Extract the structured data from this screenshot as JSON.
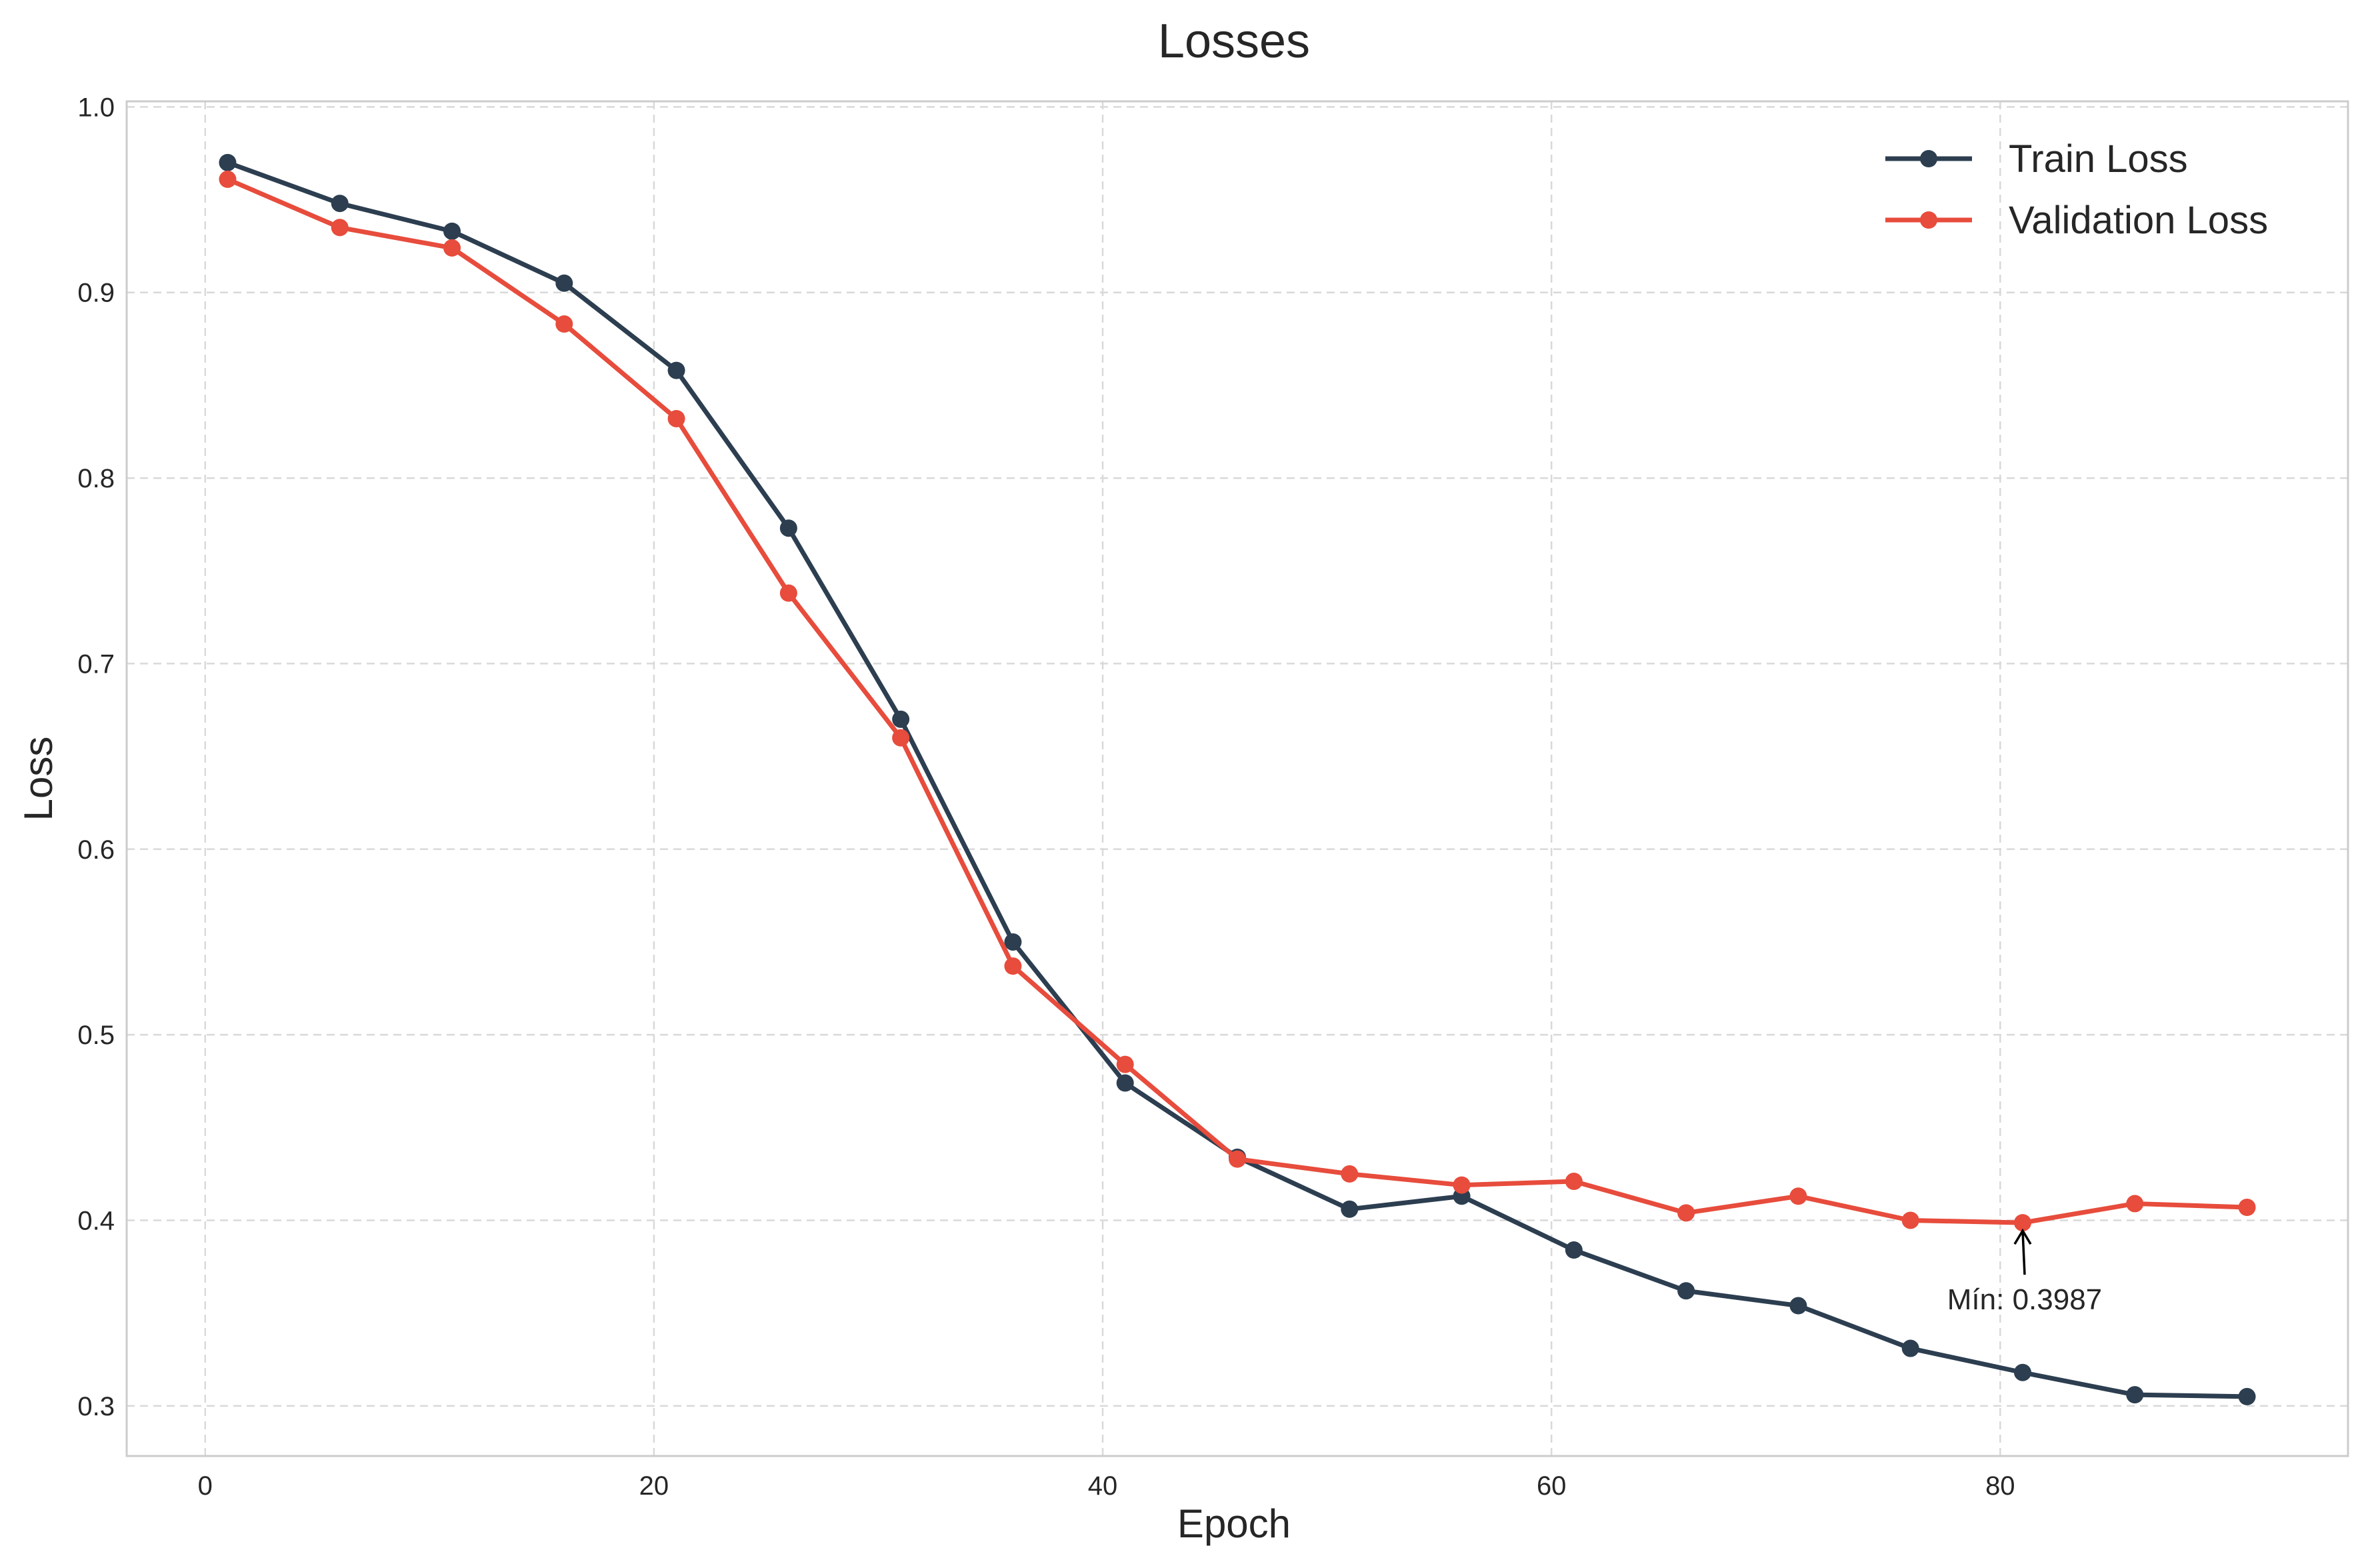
{
  "chart_data": {
    "type": "line",
    "title": "Losses",
    "xlabel": "Epoch",
    "ylabel": "Loss",
    "xlim": [
      -3.5,
      95.5
    ],
    "ylim": [
      0.273,
      1.003
    ],
    "xticks": [
      0,
      20,
      40,
      60,
      80
    ],
    "yticks": [
      0.3,
      0.4,
      0.5,
      0.6,
      0.7,
      0.8,
      0.9,
      1.0
    ],
    "xtick_labels": [
      "0",
      "20",
      "40",
      "60",
      "80"
    ],
    "ytick_labels": [
      "0.3",
      "0.4",
      "0.5",
      "0.6",
      "0.7",
      "0.8",
      "0.9",
      "1.0"
    ],
    "grid": true,
    "legend_position": "top-right",
    "x": [
      1,
      6,
      11,
      16,
      21,
      26,
      31,
      36,
      41,
      46,
      51,
      56,
      61,
      66,
      71,
      76,
      81,
      86,
      91
    ],
    "series": [
      {
        "name": "Train Loss",
        "color": "#2c3e50",
        "values": [
          0.97,
          0.948,
          0.933,
          0.905,
          0.858,
          0.773,
          0.67,
          0.55,
          0.474,
          0.434,
          0.406,
          0.413,
          0.384,
          0.362,
          0.354,
          0.331,
          0.318,
          0.306,
          0.305
        ]
      },
      {
        "name": "Validation Loss",
        "color": "#e74c3c",
        "values": [
          0.961,
          0.935,
          0.924,
          0.883,
          0.832,
          0.738,
          0.66,
          0.537,
          0.484,
          0.433,
          0.425,
          0.419,
          0.421,
          0.404,
          0.413,
          0.4,
          0.3987,
          0.409,
          0.407
        ]
      }
    ],
    "annotation": {
      "text": "Mín: 0.3987",
      "x": 81,
      "y": 0.3987
    }
  }
}
